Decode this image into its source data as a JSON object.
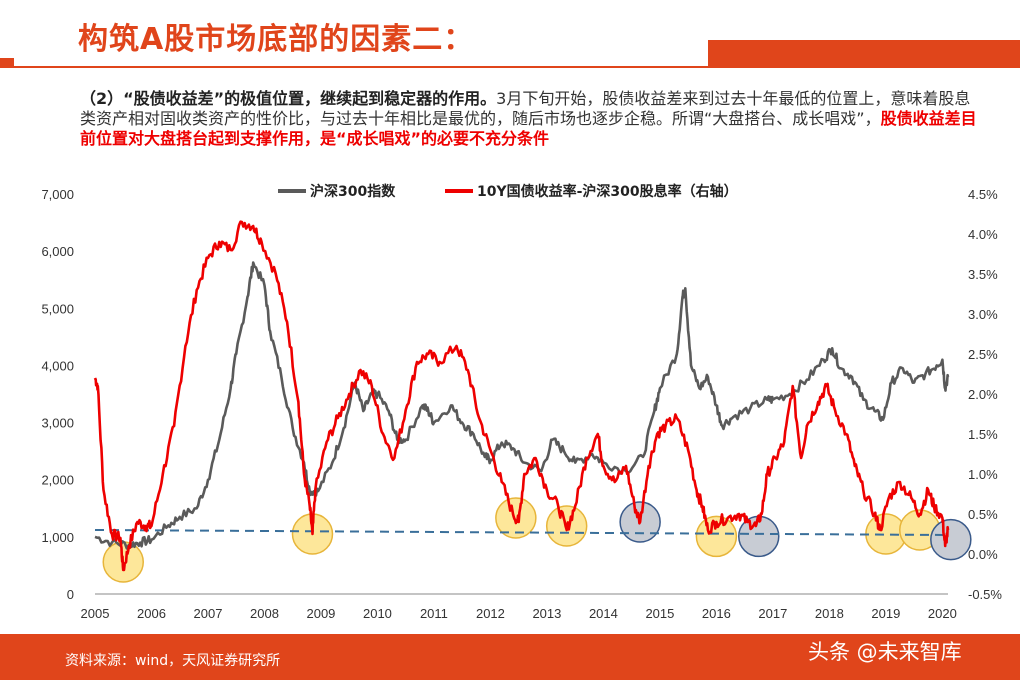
{
  "header": {
    "title": "构筑A股市场底部的因素二：",
    "intro_bold": "（2）“股债收益差”的极值位置，继续起到稳定器的作用。",
    "intro_text": "3月下旬开始，股债收益差来到过去十年最低的位置上，意味着股息类资产相对固收类资产的性价比，与过去十年相比是最优的，随后市场也逐步企稳。所谓“大盘搭台、成长唱戏”，",
    "intro_red": "股债收益差目前位置对大盘搭台起到支撑作用，是“成长唱戏”的必要不充分条件"
  },
  "footer": {
    "source": "资料来源：wind，天风证券研究所",
    "watermark": "头条 @未来智库"
  },
  "colors": {
    "accent": "#e0451b",
    "csi300": "#5a5a5a",
    "spread": "#ee0000",
    "dash": "#3a6f9a",
    "yellow_circle": "#fde79a",
    "gray_circle": "#c8ccd4"
  },
  "chart_data": {
    "type": "line",
    "x_axis": {
      "ticks": [
        "2005",
        "2006",
        "2007",
        "2008",
        "2009",
        "2010",
        "2011",
        "2012",
        "2013",
        "2014",
        "2015",
        "2016",
        "2017",
        "2018",
        "2019",
        "2020"
      ],
      "range": [
        2005.0,
        2020.1
      ]
    },
    "y_left": {
      "ticks": [
        "0",
        "1,000",
        "2,000",
        "3,000",
        "4,000",
        "5,000",
        "6,000",
        "7,000"
      ],
      "range": [
        0,
        7000
      ]
    },
    "y_right": {
      "ticks": [
        "-0.5%",
        "0.0%",
        "0.5%",
        "1.0%",
        "1.5%",
        "2.0%",
        "2.5%",
        "3.0%",
        "3.5%",
        "4.0%",
        "4.5%"
      ],
      "range": [
        -0.5,
        4.5
      ]
    },
    "legend_position": "top",
    "reference_line_right": 0.25,
    "series": [
      {
        "name": "沪深300指数",
        "axis": "left",
        "points": [
          [
            2005.0,
            1000
          ],
          [
            2005.3,
            900
          ],
          [
            2005.6,
            860
          ],
          [
            2005.8,
            900
          ],
          [
            2006.0,
            950
          ],
          [
            2006.3,
            1200
          ],
          [
            2006.5,
            1350
          ],
          [
            2006.8,
            1500
          ],
          [
            2007.0,
            2000
          ],
          [
            2007.2,
            2700
          ],
          [
            2007.4,
            3600
          ],
          [
            2007.5,
            4200
          ],
          [
            2007.7,
            5200
          ],
          [
            2007.8,
            5800
          ],
          [
            2008.0,
            5400
          ],
          [
            2008.1,
            4600
          ],
          [
            2008.3,
            3800
          ],
          [
            2008.5,
            2900
          ],
          [
            2008.7,
            2300
          ],
          [
            2008.8,
            1800
          ],
          [
            2008.95,
            1800
          ],
          [
            2009.2,
            2300
          ],
          [
            2009.4,
            2900
          ],
          [
            2009.6,
            3700
          ],
          [
            2009.75,
            3200
          ],
          [
            2009.9,
            3500
          ],
          [
            2010.0,
            3500
          ],
          [
            2010.2,
            3200
          ],
          [
            2010.35,
            2700
          ],
          [
            2010.5,
            2700
          ],
          [
            2010.8,
            3300
          ],
          [
            2010.9,
            3200
          ],
          [
            2011.0,
            3000
          ],
          [
            2011.3,
            3300
          ],
          [
            2011.5,
            3000
          ],
          [
            2011.7,
            2800
          ],
          [
            2011.9,
            2400
          ],
          [
            2012.0,
            2350
          ],
          [
            2012.2,
            2650
          ],
          [
            2012.4,
            2550
          ],
          [
            2012.6,
            2300
          ],
          [
            2012.9,
            2150
          ],
          [
            2013.1,
            2700
          ],
          [
            2013.3,
            2500
          ],
          [
            2013.5,
            2300
          ],
          [
            2013.8,
            2450
          ],
          [
            2014.0,
            2300
          ],
          [
            2014.4,
            2150
          ],
          [
            2014.7,
            2400
          ],
          [
            2014.9,
            3200
          ],
          [
            2015.0,
            3600
          ],
          [
            2015.3,
            4200
          ],
          [
            2015.4,
            5200
          ],
          [
            2015.45,
            5350
          ],
          [
            2015.55,
            4000
          ],
          [
            2015.7,
            3600
          ],
          [
            2015.85,
            3800
          ],
          [
            2016.0,
            3300
          ],
          [
            2016.1,
            2950
          ],
          [
            2016.3,
            3100
          ],
          [
            2016.6,
            3250
          ],
          [
            2016.9,
            3400
          ],
          [
            2017.0,
            3400
          ],
          [
            2017.3,
            3500
          ],
          [
            2017.6,
            3750
          ],
          [
            2017.9,
            4100
          ],
          [
            2018.05,
            4300
          ],
          [
            2018.2,
            3950
          ],
          [
            2018.4,
            3800
          ],
          [
            2018.6,
            3400
          ],
          [
            2018.8,
            3200
          ],
          [
            2018.95,
            3050
          ],
          [
            2019.1,
            3700
          ],
          [
            2019.3,
            3950
          ],
          [
            2019.5,
            3700
          ],
          [
            2019.7,
            3850
          ],
          [
            2019.9,
            4000
          ],
          [
            2020.0,
            4100
          ],
          [
            2020.05,
            3600
          ],
          [
            2020.1,
            3800
          ]
        ]
      },
      {
        "name": "10Y国债收益率-沪深300股息率（右轴）",
        "axis": "right",
        "points": [
          [
            2005.0,
            2.2
          ],
          [
            2005.05,
            2.1
          ],
          [
            2005.15,
            0.8
          ],
          [
            2005.3,
            0.25
          ],
          [
            2005.45,
            0.2
          ],
          [
            2005.5,
            -0.2
          ],
          [
            2005.6,
            0.1
          ],
          [
            2005.75,
            0.4
          ],
          [
            2005.9,
            0.35
          ],
          [
            2006.0,
            0.35
          ],
          [
            2006.2,
            1.0
          ],
          [
            2006.4,
            1.6
          ],
          [
            2006.6,
            2.6
          ],
          [
            2006.8,
            3.3
          ],
          [
            2007.0,
            3.7
          ],
          [
            2007.2,
            3.9
          ],
          [
            2007.4,
            3.8
          ],
          [
            2007.6,
            4.15
          ],
          [
            2007.8,
            4.1
          ],
          [
            2007.95,
            3.9
          ],
          [
            2008.2,
            3.5
          ],
          [
            2008.4,
            2.9
          ],
          [
            2008.6,
            1.9
          ],
          [
            2008.7,
            1.0
          ],
          [
            2008.8,
            0.6
          ],
          [
            2008.85,
            0.25
          ],
          [
            2008.9,
            0.8
          ],
          [
            2009.1,
            1.4
          ],
          [
            2009.3,
            1.7
          ],
          [
            2009.5,
            2.0
          ],
          [
            2009.7,
            2.3
          ],
          [
            2009.9,
            2.1
          ],
          [
            2010.1,
            1.5
          ],
          [
            2010.3,
            1.2
          ],
          [
            2010.5,
            1.8
          ],
          [
            2010.7,
            2.4
          ],
          [
            2010.9,
            2.5
          ],
          [
            2011.1,
            2.4
          ],
          [
            2011.4,
            2.6
          ],
          [
            2011.6,
            2.3
          ],
          [
            2011.8,
            1.7
          ],
          [
            2012.0,
            1.3
          ],
          [
            2012.2,
            0.9
          ],
          [
            2012.4,
            0.5
          ],
          [
            2012.5,
            0.4
          ],
          [
            2012.6,
            1.0
          ],
          [
            2012.8,
            1.2
          ],
          [
            2013.0,
            0.8
          ],
          [
            2013.2,
            0.6
          ],
          [
            2013.35,
            0.3
          ],
          [
            2013.5,
            0.6
          ],
          [
            2013.7,
            1.2
          ],
          [
            2013.9,
            1.5
          ],
          [
            2014.0,
            1.1
          ],
          [
            2014.2,
            0.9
          ],
          [
            2014.4,
            1.1
          ],
          [
            2014.55,
            0.6
          ],
          [
            2014.65,
            0.4
          ],
          [
            2014.8,
            1.1
          ],
          [
            2014.95,
            1.5
          ],
          [
            2015.1,
            1.6
          ],
          [
            2015.3,
            1.7
          ],
          [
            2015.5,
            1.3
          ],
          [
            2015.65,
            0.8
          ],
          [
            2015.75,
            0.6
          ],
          [
            2015.85,
            0.3
          ],
          [
            2016.0,
            0.4
          ],
          [
            2016.2,
            0.45
          ],
          [
            2016.4,
            0.5
          ],
          [
            2016.55,
            0.4
          ],
          [
            2016.7,
            0.35
          ],
          [
            2016.8,
            0.5
          ],
          [
            2016.9,
            1.0
          ],
          [
            2017.05,
            1.2
          ],
          [
            2017.2,
            1.4
          ],
          [
            2017.35,
            2.1
          ],
          [
            2017.5,
            1.2
          ],
          [
            2017.6,
            1.6
          ],
          [
            2017.8,
            1.9
          ],
          [
            2017.95,
            2.1
          ],
          [
            2018.1,
            1.8
          ],
          [
            2018.3,
            1.5
          ],
          [
            2018.45,
            1.1
          ],
          [
            2018.6,
            0.8
          ],
          [
            2018.8,
            0.5
          ],
          [
            2018.9,
            0.3
          ],
          [
            2019.05,
            0.7
          ],
          [
            2019.25,
            0.9
          ],
          [
            2019.45,
            0.7
          ],
          [
            2019.6,
            0.5
          ],
          [
            2019.75,
            0.8
          ],
          [
            2019.85,
            0.6
          ],
          [
            2020.0,
            0.45
          ],
          [
            2020.05,
            0.1
          ],
          [
            2020.1,
            0.3
          ]
        ]
      }
    ],
    "highlights": [
      {
        "x": 2005.5,
        "y": -0.1,
        "color": "yellow"
      },
      {
        "x": 2008.85,
        "y": 0.25,
        "color": "yellow"
      },
      {
        "x": 2012.45,
        "y": 0.45,
        "color": "yellow"
      },
      {
        "x": 2013.35,
        "y": 0.35,
        "color": "yellow"
      },
      {
        "x": 2014.65,
        "y": 0.4,
        "color": "gray"
      },
      {
        "x": 2016.0,
        "y": 0.22,
        "color": "yellow"
      },
      {
        "x": 2016.75,
        "y": 0.22,
        "color": "gray"
      },
      {
        "x": 2019.0,
        "y": 0.25,
        "color": "yellow"
      },
      {
        "x": 2019.6,
        "y": 0.3,
        "color": "yellow"
      },
      {
        "x": 2020.15,
        "y": 0.18,
        "color": "gray"
      }
    ]
  }
}
